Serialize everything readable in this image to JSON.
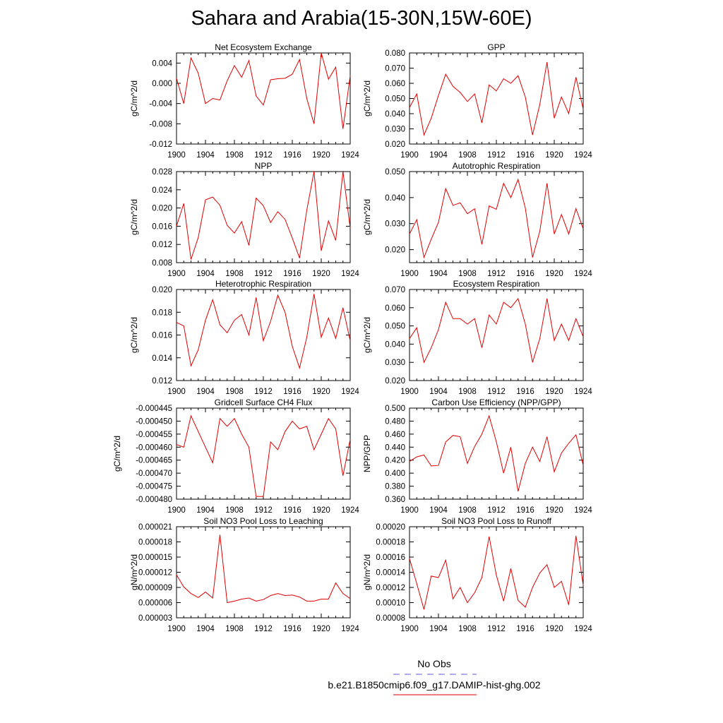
{
  "title": "Sahara and Arabia(15-30N,15W-60E)",
  "legend": {
    "obs_label": "No Obs",
    "obs_color": "#5a5adc",
    "model_label": "b.e21.B1850cmip6.f09_g17.DAMIP-hist-ghg.002",
    "model_color": "#e00000"
  },
  "chart_data": [
    {
      "type": "line",
      "title": "Net Ecosystem Exchange",
      "ylabel": "gC/m^2/d",
      "xlim": [
        1900,
        1924
      ],
      "ylim": [
        -0.012,
        0.006
      ],
      "xticks": [
        "1900",
        "1904",
        "1908",
        "1912",
        "1916",
        "1920",
        "1924"
      ],
      "yticks": [
        "-0.012",
        "-0.008",
        "-0.004",
        "0.000",
        "0.004"
      ],
      "x": [
        1900,
        1901,
        1902,
        1903,
        1904,
        1905,
        1906,
        1907,
        1908,
        1909,
        1910,
        1911,
        1912,
        1913,
        1914,
        1915,
        1916,
        1917,
        1918,
        1919,
        1920,
        1921,
        1922,
        1923,
        1924
      ],
      "series": [
        {
          "values": [
            0.001,
            -0.004,
            0.005,
            0.002,
            -0.004,
            -0.003,
            -0.0033,
            0.0005,
            0.0035,
            0.0012,
            0.0045,
            -0.0025,
            -0.0043,
            0.0007,
            0.0009,
            0.001,
            0.0018,
            0.0047,
            -0.003,
            -0.008,
            0.006,
            0.0008,
            0.0032,
            -0.009,
            0.0015
          ]
        }
      ]
    },
    {
      "type": "line",
      "title": "GPP",
      "ylabel": "gC/m^2/d",
      "xlim": [
        1900,
        1924
      ],
      "ylim": [
        0.02,
        0.08
      ],
      "xticks": [
        "1900",
        "1904",
        "1908",
        "1912",
        "1916",
        "1920",
        "1924"
      ],
      "yticks": [
        "0.020",
        "0.030",
        "0.040",
        "0.050",
        "0.060",
        "0.070",
        "0.080"
      ],
      "x": [
        1900,
        1901,
        1902,
        1903,
        1904,
        1905,
        1906,
        1907,
        1908,
        1909,
        1910,
        1911,
        1912,
        1913,
        1914,
        1915,
        1916,
        1917,
        1918,
        1919,
        1920,
        1921,
        1922,
        1923,
        1924
      ],
      "series": [
        {
          "values": [
            0.044,
            0.053,
            0.026,
            0.037,
            0.052,
            0.066,
            0.058,
            0.054,
            0.048,
            0.053,
            0.034,
            0.059,
            0.055,
            0.063,
            0.06,
            0.065,
            0.051,
            0.026,
            0.046,
            0.074,
            0.037,
            0.051,
            0.04,
            0.064,
            0.043
          ]
        }
      ]
    },
    {
      "type": "line",
      "title": "NPP",
      "ylabel": "gC/m^2/d",
      "xlim": [
        1900,
        1924
      ],
      "ylim": [
        0.008,
        0.028
      ],
      "xticks": [
        "1900",
        "1904",
        "1908",
        "1912",
        "1916",
        "1920",
        "1924"
      ],
      "yticks": [
        "0.008",
        "0.012",
        "0.016",
        "0.020",
        "0.024",
        "0.028"
      ],
      "x": [
        1900,
        1901,
        1902,
        1903,
        1904,
        1905,
        1906,
        1907,
        1908,
        1909,
        1910,
        1911,
        1912,
        1913,
        1914,
        1915,
        1916,
        1917,
        1918,
        1919,
        1920,
        1921,
        1922,
        1923,
        1924
      ],
      "series": [
        {
          "values": [
            0.016,
            0.021,
            0.0087,
            0.0135,
            0.0218,
            0.0224,
            0.0206,
            0.0162,
            0.0145,
            0.017,
            0.0118,
            0.0222,
            0.0205,
            0.0168,
            0.0192,
            0.0175,
            0.0134,
            0.009,
            0.0195,
            0.028,
            0.0106,
            0.0172,
            0.0129,
            0.028,
            0.0156
          ]
        }
      ]
    },
    {
      "type": "line",
      "title": "Autotrophic Respiration",
      "ylabel": "gC/m^2/d",
      "xlim": [
        1900,
        1924
      ],
      "ylim": [
        0.015,
        0.05
      ],
      "xticks": [
        "1900",
        "1904",
        "1908",
        "1912",
        "1916",
        "1920",
        "1924"
      ],
      "yticks": [
        "0.020",
        "0.030",
        "0.040",
        "0.050"
      ],
      "x": [
        1900,
        1901,
        1902,
        1903,
        1904,
        1905,
        1906,
        1907,
        1908,
        1909,
        1910,
        1911,
        1912,
        1913,
        1914,
        1915,
        1916,
        1917,
        1918,
        1919,
        1920,
        1921,
        1922,
        1923,
        1924
      ],
      "series": [
        {
          "values": [
            0.026,
            0.0315,
            0.017,
            0.024,
            0.0305,
            0.0435,
            0.037,
            0.038,
            0.0338,
            0.0357,
            0.022,
            0.0368,
            0.0355,
            0.0455,
            0.04,
            0.047,
            0.036,
            0.017,
            0.027,
            0.0455,
            0.026,
            0.0335,
            0.026,
            0.0358,
            0.028
          ]
        }
      ]
    },
    {
      "type": "line",
      "title": "Heterotrophic Respiration",
      "ylabel": "gC/m^2/d",
      "xlim": [
        1900,
        1924
      ],
      "ylim": [
        0.012,
        0.02
      ],
      "xticks": [
        "1900",
        "1904",
        "1908",
        "1912",
        "1916",
        "1920",
        "1924"
      ],
      "yticks": [
        "0.012",
        "0.014",
        "0.016",
        "0.018",
        "0.020"
      ],
      "x": [
        1900,
        1901,
        1902,
        1903,
        1904,
        1905,
        1906,
        1907,
        1908,
        1909,
        1910,
        1911,
        1912,
        1913,
        1914,
        1915,
        1916,
        1917,
        1918,
        1919,
        1920,
        1921,
        1922,
        1923,
        1924
      ],
      "series": [
        {
          "values": [
            0.0171,
            0.0168,
            0.0133,
            0.0147,
            0.0173,
            0.0191,
            0.0169,
            0.0162,
            0.0173,
            0.0178,
            0.016,
            0.0193,
            0.0155,
            0.0172,
            0.0195,
            0.018,
            0.015,
            0.0131,
            0.0158,
            0.0196,
            0.0158,
            0.0175,
            0.0157,
            0.0184,
            0.0155
          ]
        }
      ]
    },
    {
      "type": "line",
      "title": "Ecosystem Respiration",
      "ylabel": "gC/m^2/d",
      "xlim": [
        1900,
        1924
      ],
      "ylim": [
        0.02,
        0.07
      ],
      "xticks": [
        "1900",
        "1904",
        "1908",
        "1912",
        "1916",
        "1920",
        "1924"
      ],
      "yticks": [
        "0.020",
        "0.030",
        "0.040",
        "0.050",
        "0.060",
        "0.070"
      ],
      "x": [
        1900,
        1901,
        1902,
        1903,
        1904,
        1905,
        1906,
        1907,
        1908,
        1909,
        1910,
        1911,
        1912,
        1913,
        1914,
        1915,
        1916,
        1917,
        1918,
        1919,
        1920,
        1921,
        1922,
        1923,
        1924
      ],
      "series": [
        {
          "values": [
            0.043,
            0.049,
            0.03,
            0.038,
            0.048,
            0.063,
            0.054,
            0.054,
            0.051,
            0.054,
            0.038,
            0.056,
            0.051,
            0.063,
            0.06,
            0.065,
            0.051,
            0.03,
            0.043,
            0.065,
            0.042,
            0.051,
            0.042,
            0.054,
            0.044
          ]
        }
      ]
    },
    {
      "type": "line",
      "title": "Gridcell Surface CH4 Flux",
      "ylabel": "gC/m^2/d",
      "xlim": [
        1900,
        1924
      ],
      "ylim": [
        -0.00048,
        -0.000445
      ],
      "xticks": [
        "1900",
        "1904",
        "1908",
        "1912",
        "1916",
        "1920",
        "1924"
      ],
      "yticks": [
        "-0.000480",
        "-0.000475",
        "-0.000470",
        "-0.000465",
        "-0.000460",
        "-0.000455",
        "-0.000450",
        "-0.000445"
      ],
      "x": [
        1900,
        1901,
        1902,
        1903,
        1904,
        1905,
        1906,
        1907,
        1908,
        1909,
        1910,
        1911,
        1912,
        1913,
        1914,
        1915,
        1916,
        1917,
        1918,
        1919,
        1920,
        1921,
        1922,
        1923,
        1924
      ],
      "series": [
        {
          "values": [
            -0.000459,
            -0.00046,
            -0.000448,
            -0.000454,
            -0.00046,
            -0.000466,
            -0.000449,
            -0.000452,
            -0.000449,
            -0.000455,
            -0.00046,
            -0.000479,
            -0.000479,
            -0.000458,
            -0.000461,
            -0.000454,
            -0.00045,
            -0.000453,
            -0.000452,
            -0.000461,
            -0.000455,
            -0.000449,
            -0.000453,
            -0.000471,
            -0.000457
          ]
        }
      ]
    },
    {
      "type": "line",
      "title": "Carbon Use Efficiency (NPP/GPP)",
      "ylabel": "NPP/GPP",
      "xlim": [
        1900,
        1924
      ],
      "ylim": [
        0.36,
        0.5
      ],
      "xticks": [
        "1900",
        "1904",
        "1908",
        "1912",
        "1916",
        "1920",
        "1924"
      ],
      "yticks": [
        "0.360",
        "0.380",
        "0.400",
        "0.420",
        "0.440",
        "0.460",
        "0.480",
        "0.500"
      ],
      "x": [
        1900,
        1901,
        1902,
        1903,
        1904,
        1905,
        1906,
        1907,
        1908,
        1909,
        1910,
        1911,
        1912,
        1913,
        1914,
        1915,
        1916,
        1917,
        1918,
        1919,
        1920,
        1921,
        1922,
        1923,
        1924
      ],
      "series": [
        {
          "values": [
            0.418,
            0.425,
            0.428,
            0.411,
            0.412,
            0.448,
            0.458,
            0.456,
            0.415,
            0.441,
            0.46,
            0.488,
            0.448,
            0.4,
            0.44,
            0.372,
            0.415,
            0.44,
            0.418,
            0.456,
            0.402,
            0.431,
            0.446,
            0.459,
            0.412
          ]
        }
      ]
    },
    {
      "type": "line",
      "title": "Soil NO3 Pool Loss to Leaching",
      "ylabel": "gN/m^2/d",
      "xlim": [
        1900,
        1924
      ],
      "ylim": [
        3e-06,
        2.1e-05
      ],
      "xticks": [
        "1900",
        "1904",
        "1908",
        "1912",
        "1916",
        "1920",
        "1924"
      ],
      "yticks": [
        "0.000003",
        "0.000006",
        "0.000009",
        "0.000012",
        "0.000015",
        "0.000018",
        "0.000021"
      ],
      "x": [
        1900,
        1901,
        1902,
        1903,
        1904,
        1905,
        1906,
        1907,
        1908,
        1909,
        1910,
        1911,
        1912,
        1913,
        1914,
        1915,
        1916,
        1917,
        1918,
        1919,
        1920,
        1921,
        1922,
        1923,
        1924
      ],
      "series": [
        {
          "values": [
            1.15e-05,
            9.1e-06,
            7.8e-06,
            7e-06,
            8.1e-06,
            6.9e-06,
            1.94e-05,
            6e-06,
            6.3e-06,
            6.7e-06,
            6.9e-06,
            6.3e-06,
            6.6e-06,
            7.4e-06,
            7.8e-06,
            7.4e-06,
            7.5e-06,
            7.1e-06,
            6.3e-06,
            6.3e-06,
            6.7e-06,
            6.7e-06,
            9.9e-06,
            7.8e-06,
            6.8e-06
          ]
        }
      ]
    },
    {
      "type": "line",
      "title": "Soil NO3 Pool Loss to Runoff",
      "ylabel": "gN/m^2/d",
      "xlim": [
        1900,
        1924
      ],
      "ylim": [
        8e-05,
        0.0002
      ],
      "xticks": [
        "1900",
        "1904",
        "1908",
        "1912",
        "1916",
        "1920",
        "1924"
      ],
      "yticks": [
        "0.00008",
        "0.00010",
        "0.00012",
        "0.00014",
        "0.00016",
        "0.00018",
        "0.00020"
      ],
      "x": [
        1900,
        1901,
        1902,
        1903,
        1904,
        1905,
        1906,
        1907,
        1908,
        1909,
        1910,
        1911,
        1912,
        1913,
        1914,
        1915,
        1916,
        1917,
        1918,
        1919,
        1920,
        1921,
        1922,
        1923,
        1924
      ],
      "series": [
        {
          "values": [
            0.000158,
            0.000125,
            9.1e-05,
            0.000135,
            0.000133,
            0.000156,
            0.000105,
            0.00012,
            0.0001,
            0.000113,
            0.000133,
            0.000187,
            0.000136,
            0.000102,
            0.000145,
            0.000103,
            9.4e-05,
            0.00012,
            0.000139,
            0.00015,
            0.00012,
            0.000128,
            9.7e-05,
            0.000188,
            0.000123
          ]
        }
      ]
    }
  ]
}
